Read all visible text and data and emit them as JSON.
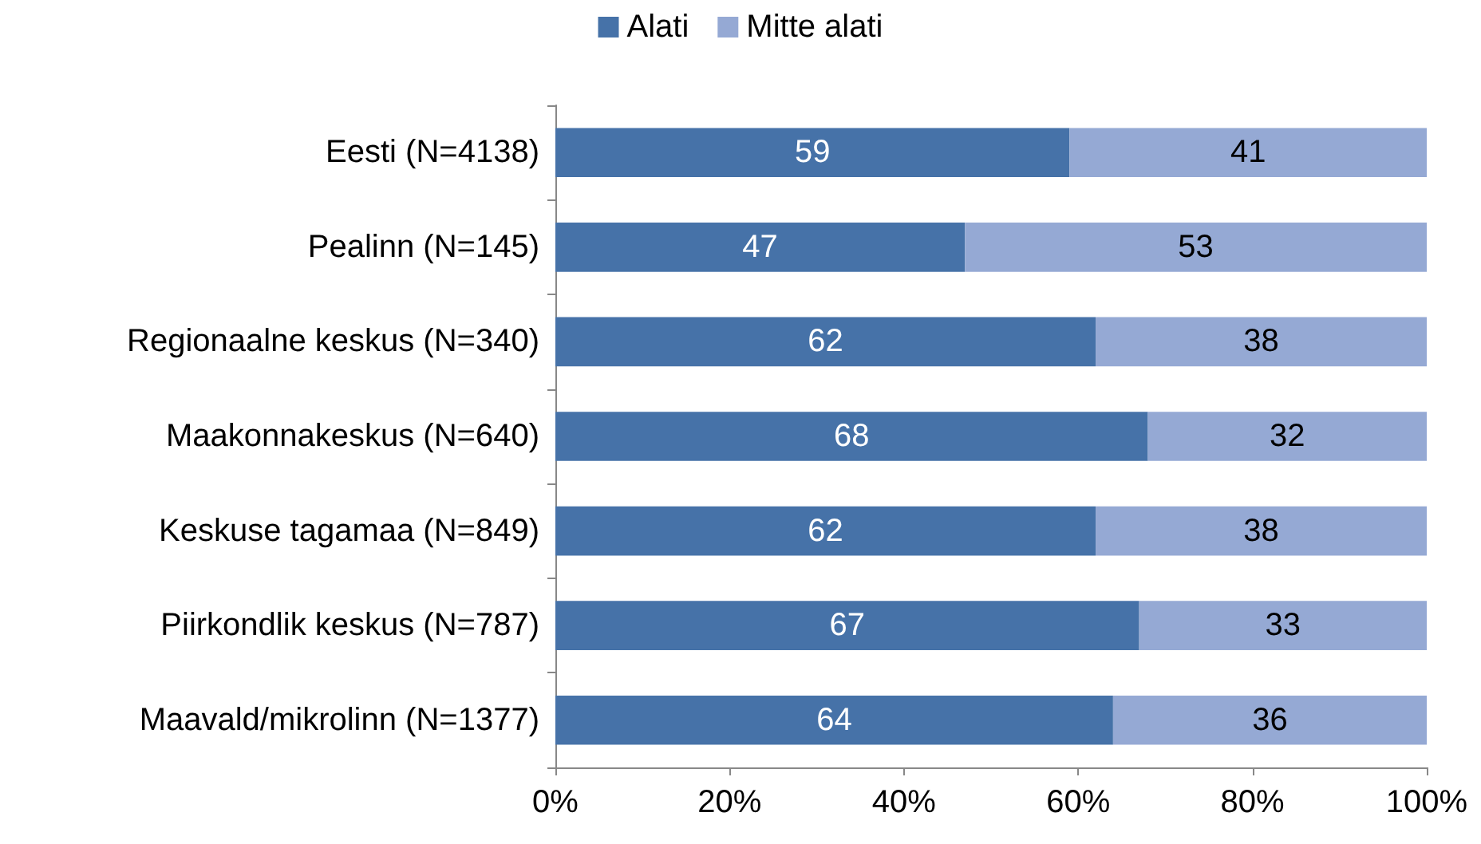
{
  "chart_data": {
    "type": "bar",
    "orientation": "horizontal",
    "stacked": true,
    "data_labels": true,
    "legend": "top",
    "grid": false,
    "categories": [
      "Eesti (N=4138)",
      "Pealinn (N=145)",
      "Regionaalne keskus (N=340)",
      "Maakonnakeskus (N=640)",
      "Keskuse tagamaa (N=849)",
      "Piirkondlik keskus (N=787)",
      "Maavald/mikrolinn (N=1377)"
    ],
    "series": [
      {
        "name": "Alati",
        "color": "#4672a8",
        "values": [
          59,
          47,
          62,
          68,
          62,
          67,
          64
        ]
      },
      {
        "name": "Mitte alati",
        "color": "#95a9d4",
        "values": [
          41,
          53,
          38,
          32,
          38,
          33,
          36
        ]
      }
    ],
    "xlim": [
      0,
      100
    ],
    "xticks": [
      {
        "value": 0,
        "label": "0%"
      },
      {
        "value": 20,
        "label": "20%"
      },
      {
        "value": 40,
        "label": "40%"
      },
      {
        "value": 60,
        "label": "60%"
      },
      {
        "value": 80,
        "label": "80%"
      },
      {
        "value": 100,
        "label": "100%"
      }
    ]
  }
}
